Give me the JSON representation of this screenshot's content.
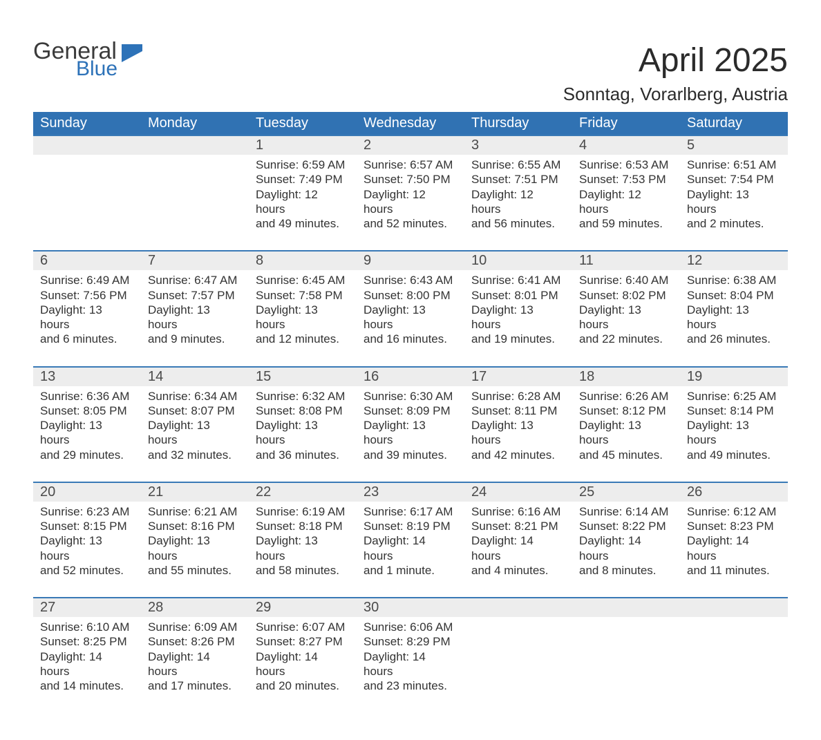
{
  "logo": {
    "general": "General",
    "blue": "Blue",
    "icon_color": "#2d72b8"
  },
  "title": "April 2025",
  "location": "Sonntag, Vorarlberg, Austria",
  "colors": {
    "header_bg": "#3072b3",
    "header_text": "#ffffff",
    "week_border": "#3979b6",
    "datebar_bg": "#ededed",
    "body_text": "#333333",
    "background": "#ffffff"
  },
  "day_names": [
    "Sunday",
    "Monday",
    "Tuesday",
    "Wednesday",
    "Thursday",
    "Friday",
    "Saturday"
  ],
  "weeks": [
    [
      null,
      null,
      {
        "num": "1",
        "sunrise": "Sunrise: 6:59 AM",
        "sunset": "Sunset: 7:49 PM",
        "daylight1": "Daylight: 12 hours",
        "daylight2": "and 49 minutes."
      },
      {
        "num": "2",
        "sunrise": "Sunrise: 6:57 AM",
        "sunset": "Sunset: 7:50 PM",
        "daylight1": "Daylight: 12 hours",
        "daylight2": "and 52 minutes."
      },
      {
        "num": "3",
        "sunrise": "Sunrise: 6:55 AM",
        "sunset": "Sunset: 7:51 PM",
        "daylight1": "Daylight: 12 hours",
        "daylight2": "and 56 minutes."
      },
      {
        "num": "4",
        "sunrise": "Sunrise: 6:53 AM",
        "sunset": "Sunset: 7:53 PM",
        "daylight1": "Daylight: 12 hours",
        "daylight2": "and 59 minutes."
      },
      {
        "num": "5",
        "sunrise": "Sunrise: 6:51 AM",
        "sunset": "Sunset: 7:54 PM",
        "daylight1": "Daylight: 13 hours",
        "daylight2": "and 2 minutes."
      }
    ],
    [
      {
        "num": "6",
        "sunrise": "Sunrise: 6:49 AM",
        "sunset": "Sunset: 7:56 PM",
        "daylight1": "Daylight: 13 hours",
        "daylight2": "and 6 minutes."
      },
      {
        "num": "7",
        "sunrise": "Sunrise: 6:47 AM",
        "sunset": "Sunset: 7:57 PM",
        "daylight1": "Daylight: 13 hours",
        "daylight2": "and 9 minutes."
      },
      {
        "num": "8",
        "sunrise": "Sunrise: 6:45 AM",
        "sunset": "Sunset: 7:58 PM",
        "daylight1": "Daylight: 13 hours",
        "daylight2": "and 12 minutes."
      },
      {
        "num": "9",
        "sunrise": "Sunrise: 6:43 AM",
        "sunset": "Sunset: 8:00 PM",
        "daylight1": "Daylight: 13 hours",
        "daylight2": "and 16 minutes."
      },
      {
        "num": "10",
        "sunrise": "Sunrise: 6:41 AM",
        "sunset": "Sunset: 8:01 PM",
        "daylight1": "Daylight: 13 hours",
        "daylight2": "and 19 minutes."
      },
      {
        "num": "11",
        "sunrise": "Sunrise: 6:40 AM",
        "sunset": "Sunset: 8:02 PM",
        "daylight1": "Daylight: 13 hours",
        "daylight2": "and 22 minutes."
      },
      {
        "num": "12",
        "sunrise": "Sunrise: 6:38 AM",
        "sunset": "Sunset: 8:04 PM",
        "daylight1": "Daylight: 13 hours",
        "daylight2": "and 26 minutes."
      }
    ],
    [
      {
        "num": "13",
        "sunrise": "Sunrise: 6:36 AM",
        "sunset": "Sunset: 8:05 PM",
        "daylight1": "Daylight: 13 hours",
        "daylight2": "and 29 minutes."
      },
      {
        "num": "14",
        "sunrise": "Sunrise: 6:34 AM",
        "sunset": "Sunset: 8:07 PM",
        "daylight1": "Daylight: 13 hours",
        "daylight2": "and 32 minutes."
      },
      {
        "num": "15",
        "sunrise": "Sunrise: 6:32 AM",
        "sunset": "Sunset: 8:08 PM",
        "daylight1": "Daylight: 13 hours",
        "daylight2": "and 36 minutes."
      },
      {
        "num": "16",
        "sunrise": "Sunrise: 6:30 AM",
        "sunset": "Sunset: 8:09 PM",
        "daylight1": "Daylight: 13 hours",
        "daylight2": "and 39 minutes."
      },
      {
        "num": "17",
        "sunrise": "Sunrise: 6:28 AM",
        "sunset": "Sunset: 8:11 PM",
        "daylight1": "Daylight: 13 hours",
        "daylight2": "and 42 minutes."
      },
      {
        "num": "18",
        "sunrise": "Sunrise: 6:26 AM",
        "sunset": "Sunset: 8:12 PM",
        "daylight1": "Daylight: 13 hours",
        "daylight2": "and 45 minutes."
      },
      {
        "num": "19",
        "sunrise": "Sunrise: 6:25 AM",
        "sunset": "Sunset: 8:14 PM",
        "daylight1": "Daylight: 13 hours",
        "daylight2": "and 49 minutes."
      }
    ],
    [
      {
        "num": "20",
        "sunrise": "Sunrise: 6:23 AM",
        "sunset": "Sunset: 8:15 PM",
        "daylight1": "Daylight: 13 hours",
        "daylight2": "and 52 minutes."
      },
      {
        "num": "21",
        "sunrise": "Sunrise: 6:21 AM",
        "sunset": "Sunset: 8:16 PM",
        "daylight1": "Daylight: 13 hours",
        "daylight2": "and 55 minutes."
      },
      {
        "num": "22",
        "sunrise": "Sunrise: 6:19 AM",
        "sunset": "Sunset: 8:18 PM",
        "daylight1": "Daylight: 13 hours",
        "daylight2": "and 58 minutes."
      },
      {
        "num": "23",
        "sunrise": "Sunrise: 6:17 AM",
        "sunset": "Sunset: 8:19 PM",
        "daylight1": "Daylight: 14 hours",
        "daylight2": "and 1 minute."
      },
      {
        "num": "24",
        "sunrise": "Sunrise: 6:16 AM",
        "sunset": "Sunset: 8:21 PM",
        "daylight1": "Daylight: 14 hours",
        "daylight2": "and 4 minutes."
      },
      {
        "num": "25",
        "sunrise": "Sunrise: 6:14 AM",
        "sunset": "Sunset: 8:22 PM",
        "daylight1": "Daylight: 14 hours",
        "daylight2": "and 8 minutes."
      },
      {
        "num": "26",
        "sunrise": "Sunrise: 6:12 AM",
        "sunset": "Sunset: 8:23 PM",
        "daylight1": "Daylight: 14 hours",
        "daylight2": "and 11 minutes."
      }
    ],
    [
      {
        "num": "27",
        "sunrise": "Sunrise: 6:10 AM",
        "sunset": "Sunset: 8:25 PM",
        "daylight1": "Daylight: 14 hours",
        "daylight2": "and 14 minutes."
      },
      {
        "num": "28",
        "sunrise": "Sunrise: 6:09 AM",
        "sunset": "Sunset: 8:26 PM",
        "daylight1": "Daylight: 14 hours",
        "daylight2": "and 17 minutes."
      },
      {
        "num": "29",
        "sunrise": "Sunrise: 6:07 AM",
        "sunset": "Sunset: 8:27 PM",
        "daylight1": "Daylight: 14 hours",
        "daylight2": "and 20 minutes."
      },
      {
        "num": "30",
        "sunrise": "Sunrise: 6:06 AM",
        "sunset": "Sunset: 8:29 PM",
        "daylight1": "Daylight: 14 hours",
        "daylight2": "and 23 minutes."
      },
      null,
      null,
      null
    ]
  ]
}
